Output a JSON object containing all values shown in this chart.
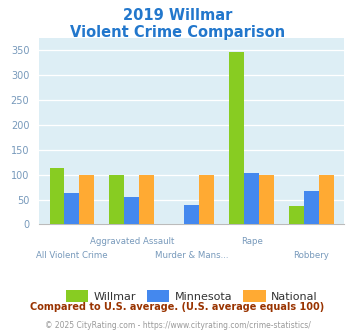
{
  "title_line1": "2019 Willmar",
  "title_line2": "Violent Crime Comparison",
  "categories": [
    "All Violent Crime",
    "Aggravated Assault",
    "Murder & Mans...",
    "Rape",
    "Robbery"
  ],
  "series": {
    "Willmar": [
      113,
      100,
      0,
      347,
      38
    ],
    "Minnesota": [
      63,
      55,
      40,
      103,
      68
    ],
    "National": [
      100,
      100,
      100,
      100,
      100
    ]
  },
  "colors": {
    "Willmar": "#88cc22",
    "Minnesota": "#4488ee",
    "National": "#ffaa33"
  },
  "ylim": [
    0,
    375
  ],
  "yticks": [
    0,
    50,
    100,
    150,
    200,
    250,
    300,
    350
  ],
  "plot_bg": "#ddeef5",
  "fig_bg": "#ffffff",
  "footnote1": "Compared to U.S. average. (U.S. average equals 100)",
  "footnote2": "© 2025 CityRating.com - https://www.cityrating.com/crime-statistics/",
  "title_color": "#2277cc",
  "footnote1_color": "#993300",
  "footnote2_color": "#999999",
  "tick_color": "#7799bb",
  "label_color": "#7799bb",
  "bar_width": 0.25
}
